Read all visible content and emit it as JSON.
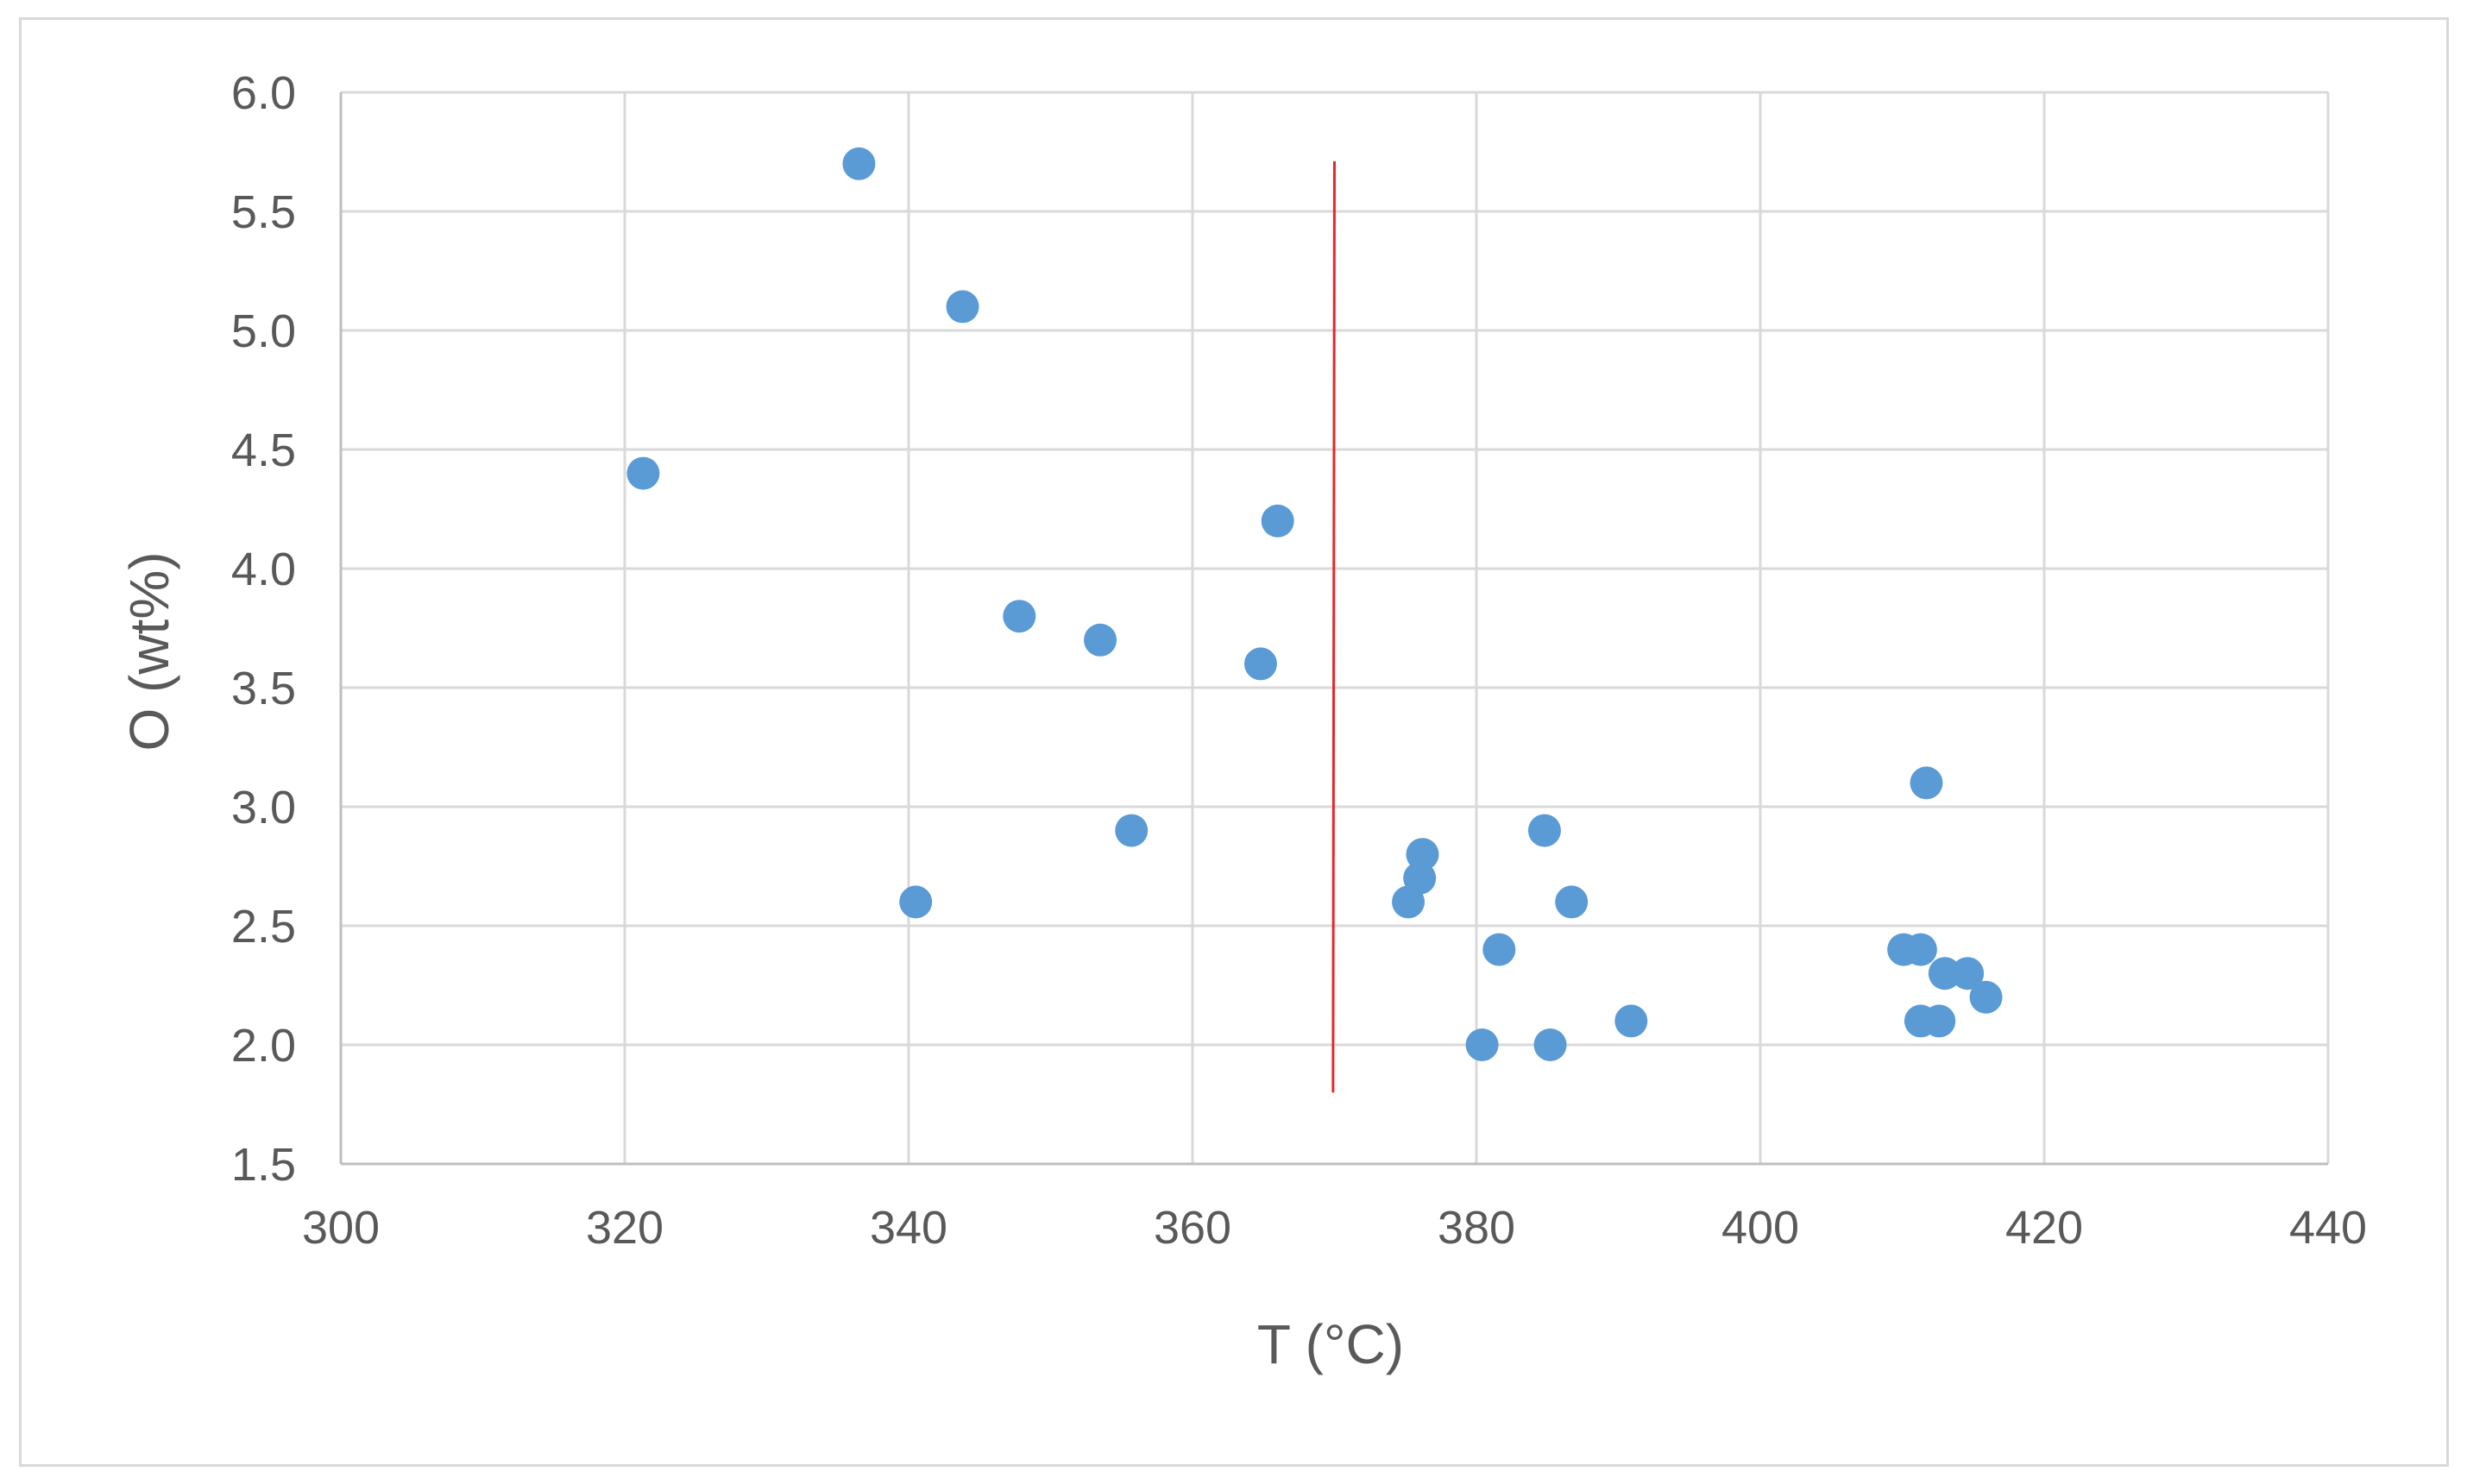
{
  "chart_data": {
    "type": "scatter",
    "title": "",
    "xlabel": "T (°C)",
    "ylabel": "O (wt%)",
    "xlim": [
      300,
      440
    ],
    "ylim": [
      1.5,
      6.0
    ],
    "x_ticks": [
      300,
      320,
      340,
      360,
      380,
      400,
      420,
      440
    ],
    "y_ticks": [
      1.5,
      2.0,
      2.5,
      3.0,
      3.5,
      4.0,
      4.5,
      5.0,
      5.5,
      6.0
    ],
    "x_tick_labels": [
      "300",
      "320",
      "340",
      "360",
      "380",
      "400",
      "420",
      "440"
    ],
    "y_tick_labels": [
      "1.5",
      "2.0",
      "2.5",
      "3.0",
      "3.5",
      "4.0",
      "4.5",
      "5.0",
      "5.5",
      "6.0"
    ],
    "grid": true,
    "legend": "none",
    "series": [
      {
        "color": "#5b9bd5",
        "points": [
          {
            "x": 321.3,
            "y": 4.4
          },
          {
            "x": 336.5,
            "y": 5.7
          },
          {
            "x": 340.5,
            "y": 2.6
          },
          {
            "x": 343.8,
            "y": 5.1
          },
          {
            "x": 347.8,
            "y": 3.8
          },
          {
            "x": 353.5,
            "y": 3.7
          },
          {
            "x": 355.7,
            "y": 2.9
          },
          {
            "x": 364.8,
            "y": 3.6
          },
          {
            "x": 366.0,
            "y": 4.2
          },
          {
            "x": 375.2,
            "y": 2.6
          },
          {
            "x": 376.0,
            "y": 2.7
          },
          {
            "x": 376.2,
            "y": 2.8
          },
          {
            "x": 380.4,
            "y": 2.0
          },
          {
            "x": 381.6,
            "y": 2.4
          },
          {
            "x": 384.8,
            "y": 2.9
          },
          {
            "x": 385.2,
            "y": 2.0
          },
          {
            "x": 386.7,
            "y": 2.6
          },
          {
            "x": 390.9,
            "y": 2.1
          },
          {
            "x": 410.1,
            "y": 2.4
          },
          {
            "x": 411.3,
            "y": 2.4
          },
          {
            "x": 411.3,
            "y": 2.1
          },
          {
            "x": 411.7,
            "y": 3.1
          },
          {
            "x": 412.6,
            "y": 2.1
          },
          {
            "x": 413.0,
            "y": 2.3
          },
          {
            "x": 414.6,
            "y": 2.3
          },
          {
            "x": 415.9,
            "y": 2.2
          }
        ]
      }
    ],
    "reference_line": {
      "color": "#e8262a",
      "x_top": 370.0,
      "x_bottom": 369.9,
      "y_top": 5.71,
      "y_bottom": 1.8
    }
  }
}
